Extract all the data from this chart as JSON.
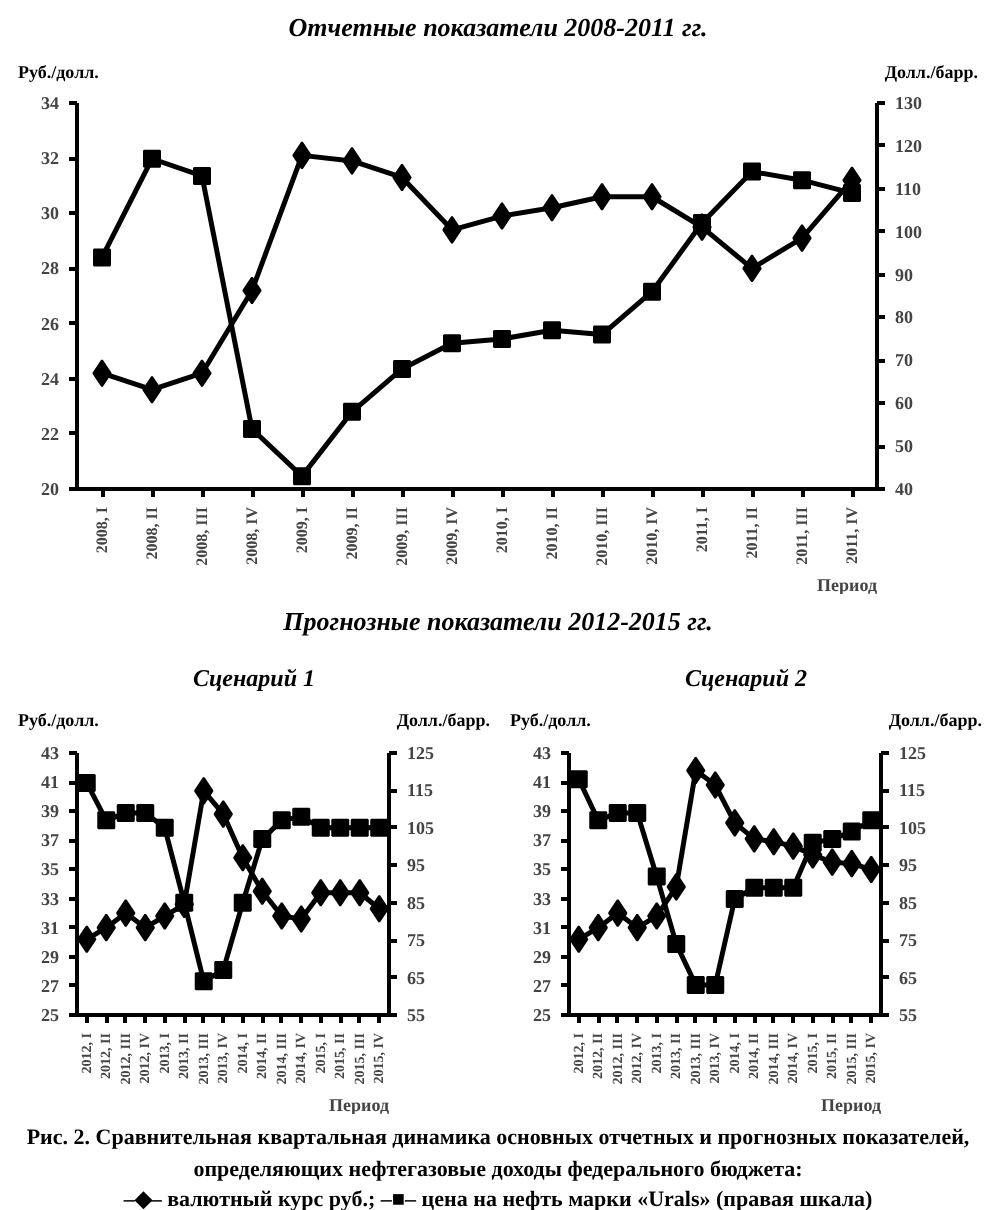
{
  "chart_data": [
    {
      "type": "line",
      "title": "Отчетные показатели 2008-2011 гг.",
      "ylabel": "Руб./долл.",
      "y2label": "Долл./барр.",
      "xlabel": "Период",
      "categories": [
        "2008, I",
        "2008, II",
        "2008, III",
        "2008, IV",
        "2009, I",
        "2009, II",
        "2009, III",
        "2009, IV",
        "2010, I",
        "2010, II",
        "2010, III",
        "2010, IV",
        "2011, I",
        "2011, II",
        "2011, III",
        "2011, IV"
      ],
      "series": [
        {
          "color": "#000000",
          "marker": "diamond",
          "values": [
            24.2,
            23.6,
            24.2,
            27.2,
            32.1,
            31.9,
            31.3,
            29.4,
            29.9,
            30.2,
            30.6,
            30.6,
            29.5,
            28.0,
            29.1,
            31.2
          ]
        },
        {
          "color": "#000000",
          "marker": "square",
          "axis": "y2",
          "values": [
            94,
            117,
            113,
            54,
            43,
            58,
            68,
            74,
            75,
            77,
            76,
            86,
            102,
            114,
            112,
            109
          ]
        }
      ],
      "ylim": [
        20,
        34
      ],
      "yticks": [
        20,
        22,
        24,
        26,
        28,
        30,
        32,
        34
      ],
      "y2lim": [
        40,
        130
      ],
      "y2ticks": [
        40,
        50,
        60,
        70,
        80,
        90,
        100,
        110,
        120,
        130
      ],
      "grid": false
    },
    {
      "type": "line",
      "title": "Сценарий 1",
      "ylabel": "Руб./долл.",
      "y2label": "Долл./барр.",
      "xlabel": "Период",
      "annotations": [
        "Прогнозные показатели 2012-2015 гг."
      ],
      "categories": [
        "2012, I",
        "2012, II",
        "2012, III",
        "2012, IV",
        "2013, I",
        "2013, II",
        "2013, III",
        "2013, IV",
        "2014, I",
        "2014, II",
        "2014, III",
        "2014, IV",
        "2015, I",
        "2015, II",
        "2015, III",
        "2015, IV"
      ],
      "series": [
        {
          "color": "#000000",
          "marker": "diamond",
          "values": [
            30.2,
            31.0,
            32.0,
            31.0,
            31.8,
            32.6,
            40.4,
            38.8,
            35.8,
            33.5,
            31.8,
            31.6,
            33.4,
            33.4,
            33.4,
            32.3
          ]
        },
        {
          "color": "#000000",
          "marker": "square",
          "axis": "y2",
          "values": [
            117,
            107,
            109,
            109,
            105,
            85,
            64,
            67,
            85,
            102,
            107,
            108,
            105,
            105,
            105,
            105
          ]
        }
      ],
      "ylim": [
        25,
        43
      ],
      "yticks": [
        25,
        27,
        29,
        31,
        33,
        35,
        37,
        39,
        41,
        43
      ],
      "y2lim": [
        55,
        125
      ],
      "y2ticks": [
        55,
        65,
        75,
        85,
        95,
        105,
        115,
        125
      ],
      "grid": false
    },
    {
      "type": "line",
      "title": "Сценарий 2",
      "ylabel": "Руб./долл.",
      "y2label": "Долл./барр.",
      "xlabel": "Период",
      "annotations": [
        "Рис. 2. Сравнительная квартальная динамика основных отчетных и прогнозных показателей, определяющих нефтегазовые доходы федерального бюджета:",
        "–◆– валютный курс руб.; –■– цена на нефть марки «Urals» (правая шкала)"
      ],
      "categories": [
        "2012, I",
        "2012, II",
        "2012, III",
        "2012, IV",
        "2013, I",
        "2013, II",
        "2013, III",
        "2013, IV",
        "2014, I",
        "2014, II",
        "2014, III",
        "2014, IV",
        "2015, I",
        "2015, II",
        "2015, III",
        "2015, IV"
      ],
      "series": [
        {
          "color": "#000000",
          "marker": "diamond",
          "values": [
            30.2,
            31.0,
            32.0,
            31.0,
            31.8,
            33.8,
            41.8,
            40.8,
            38.2,
            37.1,
            36.9,
            36.6,
            36.0,
            35.5,
            35.4,
            35.0
          ]
        },
        {
          "color": "#000000",
          "marker": "square",
          "axis": "y2",
          "values": [
            118,
            107,
            109,
            109,
            92,
            74,
            63,
            63,
            86,
            89,
            89,
            89,
            101,
            102,
            104,
            107
          ]
        }
      ],
      "ylim": [
        25,
        43
      ],
      "yticks": [
        25,
        27,
        29,
        31,
        33,
        35,
        37,
        39,
        41,
        43
      ],
      "y2lim": [
        55,
        125
      ],
      "y2ticks": [
        55,
        65,
        75,
        85,
        95,
        105,
        115,
        125
      ],
      "grid": false
    }
  ]
}
